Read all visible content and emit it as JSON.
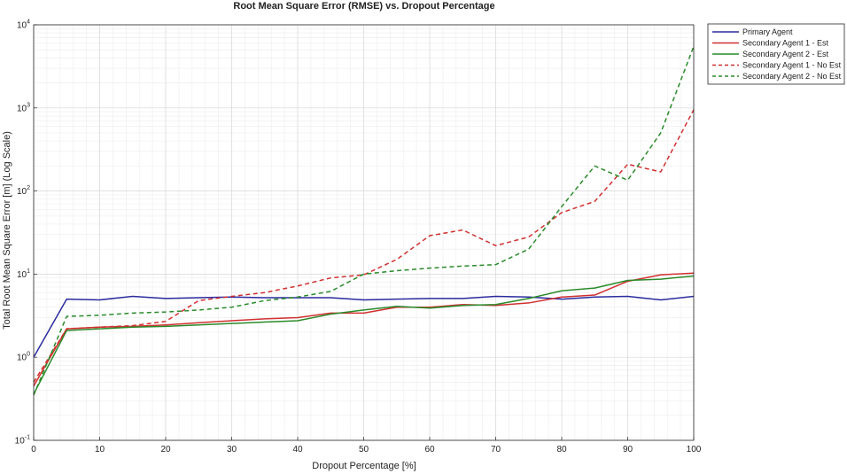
{
  "chart_data": {
    "type": "line",
    "title": "Root Mean Square Error (RMSE) vs. Dropout Percentage",
    "xlabel": "Dropout Percentage [%]",
    "ylabel": "Total Root Mean Square Error [m] (Log Scale)",
    "xlim": [
      0,
      100
    ],
    "ylim": [
      0.1,
      10000
    ],
    "yscale": "log",
    "grid": true,
    "legend_position": "top-right",
    "x_ticks": [
      0,
      10,
      20,
      30,
      40,
      50,
      60,
      70,
      80,
      90,
      100
    ],
    "x_tick_labels": [
      "0",
      "10",
      "20",
      "30",
      "40",
      "50",
      "60",
      "70",
      "80",
      "90",
      "100"
    ],
    "y_ticks": [
      {
        "value": 0.1,
        "base": "10",
        "exp": "-1"
      },
      {
        "value": 1,
        "base": "10",
        "exp": "0"
      },
      {
        "value": 10,
        "base": "10",
        "exp": "1"
      },
      {
        "value": 100,
        "base": "10",
        "exp": "2"
      },
      {
        "value": 1000,
        "base": "10",
        "exp": "3"
      },
      {
        "value": 10000,
        "base": "10",
        "exp": "4"
      }
    ],
    "x": [
      0,
      5,
      10,
      15,
      20,
      25,
      30,
      35,
      40,
      45,
      50,
      55,
      60,
      65,
      70,
      75,
      80,
      85,
      90,
      95,
      100
    ],
    "series": [
      {
        "name": "Primary Agent",
        "color": "#2b2b9e",
        "dash": "solid",
        "values": [
          1.0,
          5.0,
          4.9,
          5.4,
          5.1,
          5.2,
          5.3,
          5.2,
          5.2,
          5.2,
          4.9,
          5.0,
          5.1,
          5.1,
          5.4,
          5.3,
          5.0,
          5.3,
          5.4,
          4.9,
          5.4
        ]
      },
      {
        "name": "Secondary Agent 1 - Est",
        "color": "#d03030",
        "dash": "solid",
        "values": [
          0.45,
          2.2,
          2.3,
          2.35,
          2.45,
          2.6,
          2.75,
          2.9,
          3.0,
          3.4,
          3.4,
          4.0,
          4.0,
          4.3,
          4.2,
          4.5,
          5.3,
          5.6,
          8.2,
          9.8,
          10.3
        ]
      },
      {
        "name": "Secondary Agent 2 - Est",
        "color": "#2a8a2a",
        "dash": "solid",
        "values": [
          0.36,
          2.1,
          2.2,
          2.3,
          2.35,
          2.45,
          2.55,
          2.65,
          2.75,
          3.3,
          3.7,
          4.1,
          3.9,
          4.2,
          4.3,
          5.1,
          6.3,
          6.8,
          8.4,
          8.7,
          9.5
        ]
      },
      {
        "name": "Secondary Agent 1 - No Est",
        "color": "#d03030",
        "dash": "dashed",
        "values": [
          0.5,
          2.2,
          2.3,
          2.4,
          2.7,
          4.8,
          5.4,
          6.0,
          7.2,
          9.0,
          9.8,
          15,
          29,
          34,
          22,
          28,
          55,
          75,
          210,
          170,
          950
        ]
      },
      {
        "name": "Secondary Agent 2 - No Est",
        "color": "#2a8a2a",
        "dash": "dashed",
        "values": [
          0.35,
          3.1,
          3.2,
          3.4,
          3.5,
          3.7,
          4.0,
          4.8,
          5.3,
          6.2,
          10.0,
          11.0,
          11.8,
          12.5,
          13.0,
          20,
          65,
          200,
          135,
          500,
          5500
        ]
      }
    ]
  }
}
